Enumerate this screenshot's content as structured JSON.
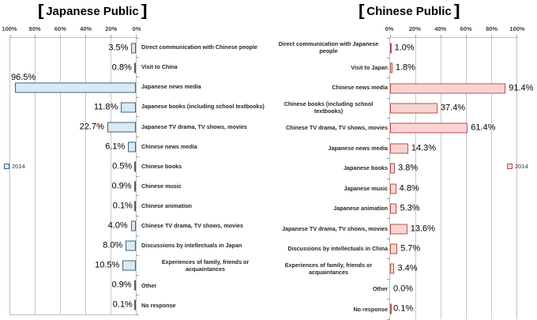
{
  "page": {
    "background": "#ffffff"
  },
  "chart_data": [
    {
      "type": "bar",
      "title": "【Japanese Public】",
      "direction": "rtl",
      "legend": "2014",
      "legend_position": "left-middle",
      "axis_ticks": [
        "100%",
        "80%",
        "60%",
        "40%",
        "20%",
        "0%"
      ],
      "xlim": [
        0,
        100
      ],
      "grid": true,
      "bar_fill": "#D7EAF6",
      "bar_border": "#41637C",
      "categories": [
        "Direct communication with Chinese people",
        "Visit to China",
        "Japanese news media",
        "Japanese books (including school textbooks)",
        "Japanese TV drama, TV shows, movies",
        "Chinese news media",
        "Chinese books",
        "Chinese music",
        "Chinese animation",
        "Chinese TV drama, TV shows, movies",
        "Discussions by intellectuals in Japan",
        "Experiences of family, friends or acquaintances",
        "Other",
        "No response"
      ],
      "values": [
        3.5,
        0.8,
        96.5,
        11.8,
        22.7,
        6.1,
        0.5,
        0.9,
        0.1,
        4.0,
        8.0,
        10.5,
        0.9,
        0.1
      ],
      "value_labels": [
        "3.5%",
        "0.8%",
        "96.5%",
        "11.8%",
        "22.7%",
        "6.1%",
        "0.5%",
        "0.9%",
        "0.1%",
        "4.0%",
        "8.0%",
        "10.5%",
        "0.9%",
        "0.1%"
      ]
    },
    {
      "type": "bar",
      "title": "【Chinese Public】",
      "direction": "ltr",
      "legend": "2014",
      "legend_position": "right-middle",
      "axis_ticks": [
        "0%",
        "20%",
        "40%",
        "60%",
        "80%",
        "100%"
      ],
      "xlim": [
        0,
        100
      ],
      "grid": true,
      "bar_fill": "#F9D3D3",
      "bar_border": "#B5534E",
      "categories": [
        "Direct communication with Japanese people",
        "Visit to Japan",
        "Chinese news media",
        "Chinese books (including school textbooks)",
        "Chinese TV drama, TV shows, movies",
        "Japanese news media",
        "Japanese books",
        "Japanese music",
        "Japanese animation",
        "Japanese TV drama, TV shows, movies",
        "Discussions by intellectuals in China",
        "Experiences of family, friends or acquaintances",
        "Other",
        "No response"
      ],
      "values": [
        1.0,
        1.8,
        91.4,
        37.4,
        61.4,
        14.3,
        3.8,
        4.8,
        5.3,
        13.6,
        5.7,
        3.4,
        0.0,
        0.1
      ],
      "value_labels": [
        "1.0%",
        "1.8%",
        "91.4%",
        "37.4%",
        "61.4%",
        "14.3%",
        "3.8%",
        "4.8%",
        "5.3%",
        "13.6%",
        "5.7%",
        "3.4%",
        "0.0%",
        "0.1%"
      ]
    }
  ]
}
